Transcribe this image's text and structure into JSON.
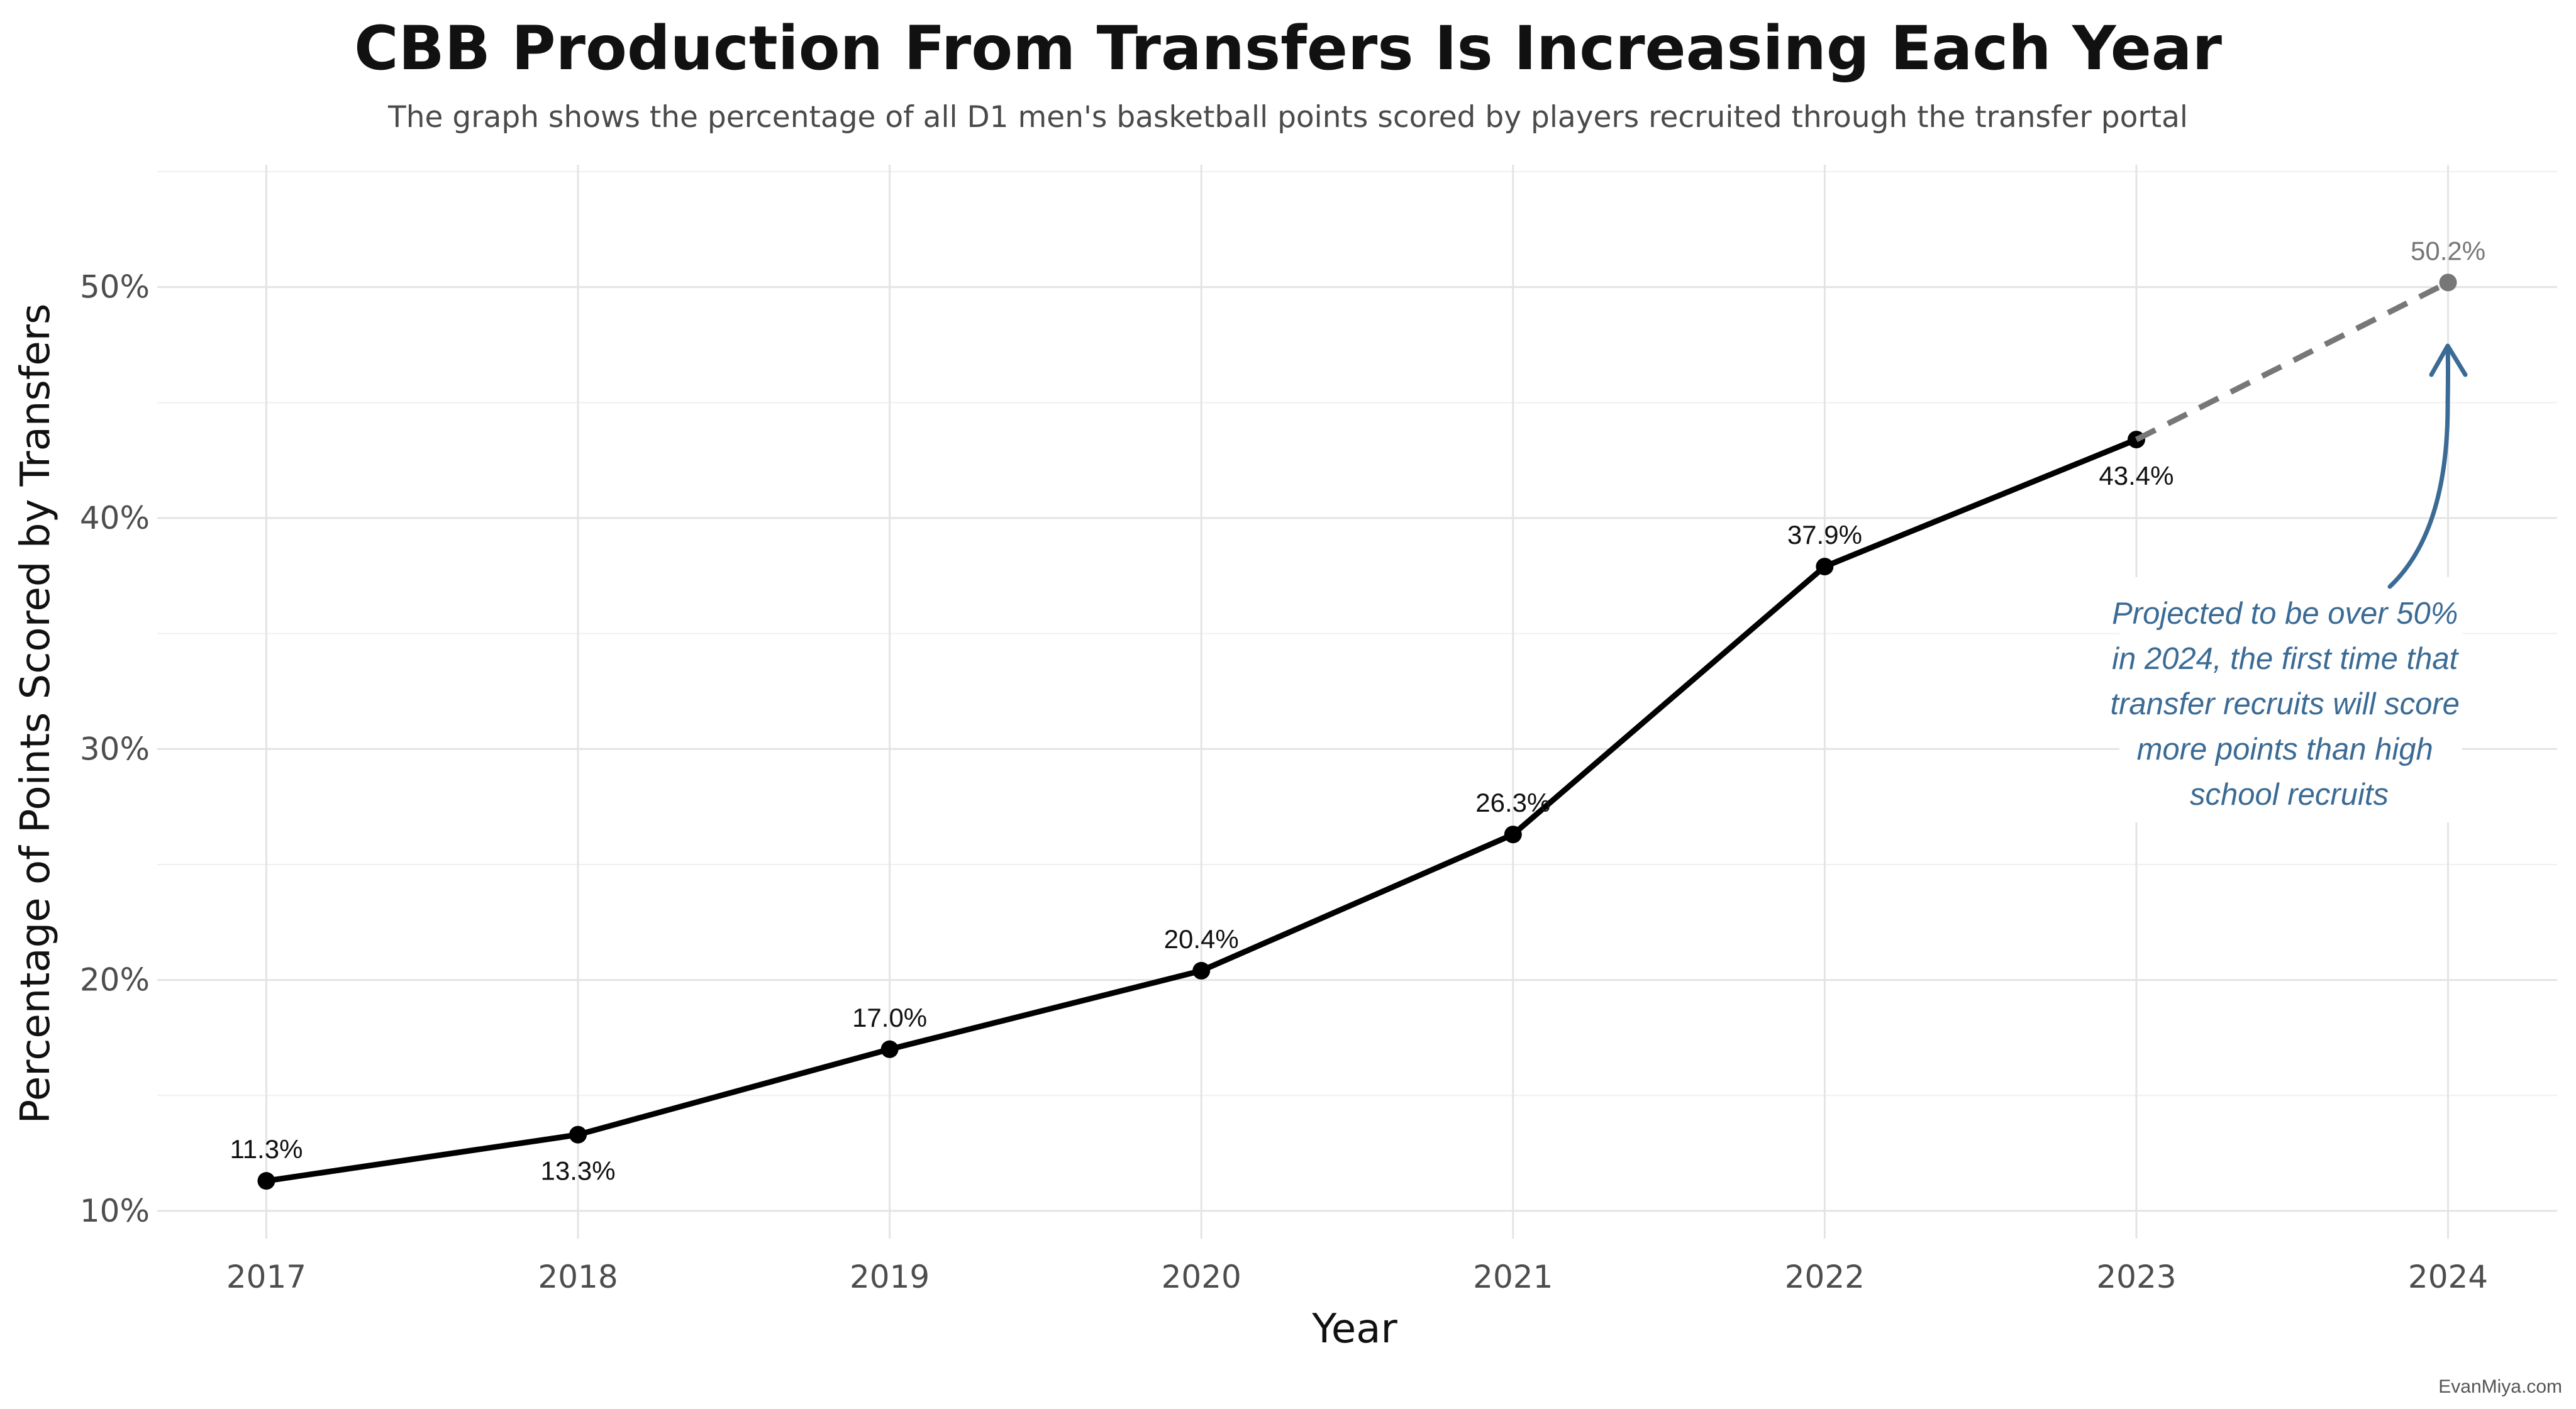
{
  "chart_data": {
    "type": "line",
    "title": "CBB Production From Transfers Is Increasing Each Year",
    "subtitle": "The graph shows the percentage of all D1 men's basketball points scored by players recruited through the transfer portal",
    "xlabel": "Year",
    "ylabel": "Percentage of Points Scored by Transfers",
    "x": [
      2017,
      2018,
      2019,
      2020,
      2021,
      2022,
      2023
    ],
    "y": [
      11.3,
      13.3,
      17.0,
      20.4,
      26.3,
      37.9,
      43.4
    ],
    "labels": [
      "11.3%",
      "13.3%",
      "17.0%",
      "20.4%",
      "26.3%",
      "37.9%",
      "43.4%"
    ],
    "label_position": [
      "above",
      "below",
      "above",
      "above",
      "above",
      "above",
      "below"
    ],
    "projection": {
      "x": [
        2023,
        2024
      ],
      "y": [
        43.4,
        50.2
      ],
      "label": "50.2%",
      "line_style": "dashed",
      "color": "#777777"
    },
    "xlim": [
      2016.65,
      2024.35
    ],
    "ylim": [
      8.8,
      55.3
    ],
    "x_ticks": [
      2017,
      2018,
      2019,
      2020,
      2021,
      2022,
      2023,
      2024
    ],
    "x_tick_labels": [
      "2017",
      "2018",
      "2019",
      "2020",
      "2021",
      "2022",
      "2023",
      "2024"
    ],
    "y_ticks": [
      10,
      20,
      30,
      40,
      50
    ],
    "y_tick_labels": [
      "10%",
      "20%",
      "30%",
      "40%",
      "50%"
    ],
    "y_minor_ticks": [
      15,
      25,
      35,
      45,
      55
    ],
    "grid": true,
    "line_color": "#000000",
    "annotation": {
      "lines": [
        "Projected to be over 50%",
        "in 2024, the first time that",
        "transfer recruits will score",
        "more points than high",
        "school recruits"
      ],
      "color": "#3b6b94"
    },
    "credit": "EvanMiya.com"
  }
}
